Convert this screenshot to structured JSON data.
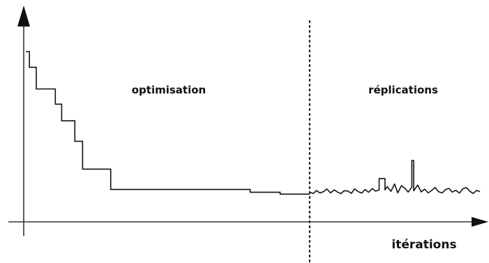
{
  "chart_data": {
    "type": "line",
    "title": "",
    "xlabel": "itérations",
    "ylabel": "",
    "grid": false,
    "legend": "none",
    "xlim": [
      0,
      100
    ],
    "ylim": [
      0,
      100
    ],
    "annotations": [
      {
        "id": "phase-optimisation",
        "text": "optimisation"
      },
      {
        "id": "phase-replications",
        "text": "réplications"
      }
    ],
    "phase_boundary_x": 62.5,
    "series": [
      {
        "kind": "step-descent",
        "x": [
          0.0,
          0.8,
          0.8,
          2.3,
          2.3,
          6.5,
          6.5,
          7.9,
          7.9,
          10.8,
          10.8,
          12.5,
          12.5,
          18.7,
          18.7,
          49.4,
          49.4,
          56.0,
          56.0,
          62.5
        ],
        "y": [
          100.0,
          100.0,
          90.0,
          90.0,
          76.1,
          76.1,
          66.4,
          66.4,
          55.7,
          55.7,
          42.6,
          42.6,
          24.8,
          24.8,
          11.8,
          11.8,
          10.0,
          10.0,
          8.8,
          8.8
        ]
      },
      {
        "kind": "noisy-tail",
        "x": [
          62.5,
          63.3,
          64.0,
          64.8,
          65.6,
          66.3,
          67.1,
          67.9,
          68.6,
          69.4,
          70.1,
          70.9,
          71.7,
          72.4,
          73.2,
          74.0,
          74.7,
          75.5,
          76.3,
          77.0,
          77.8,
          77.8,
          79.1,
          79.1,
          79.6,
          80.4,
          81.2,
          81.9,
          82.7,
          83.5,
          84.2,
          85.0,
          85.0,
          85.4,
          85.4,
          86.3,
          87.1,
          87.8,
          88.6,
          89.4,
          90.1,
          90.9,
          91.7,
          92.4,
          93.2,
          93.9,
          94.7,
          95.5,
          96.2,
          97.0,
          97.8,
          98.5,
          99.3,
          100.0
        ],
        "y": [
          10.0,
          9.2,
          11.1,
          9.5,
          10.5,
          12.1,
          9.6,
          11.5,
          10.2,
          9.1,
          11.0,
          10.8,
          9.3,
          12.2,
          10.4,
          9.5,
          11.8,
          10.0,
          12.4,
          10.7,
          11.5,
          18.8,
          18.8,
          11.5,
          13.6,
          10.6,
          15.3,
          9.6,
          14.2,
          12.5,
          10.1,
          13.3,
          30.3,
          30.3,
          11.0,
          14.6,
          10.2,
          12.0,
          9.6,
          11.2,
          13.1,
          10.3,
          9.6,
          11.7,
          12.5,
          10.1,
          11.3,
          9.5,
          12.2,
          13.0,
          10.6,
          9.3,
          11.2,
          10.4
        ]
      }
    ]
  }
}
